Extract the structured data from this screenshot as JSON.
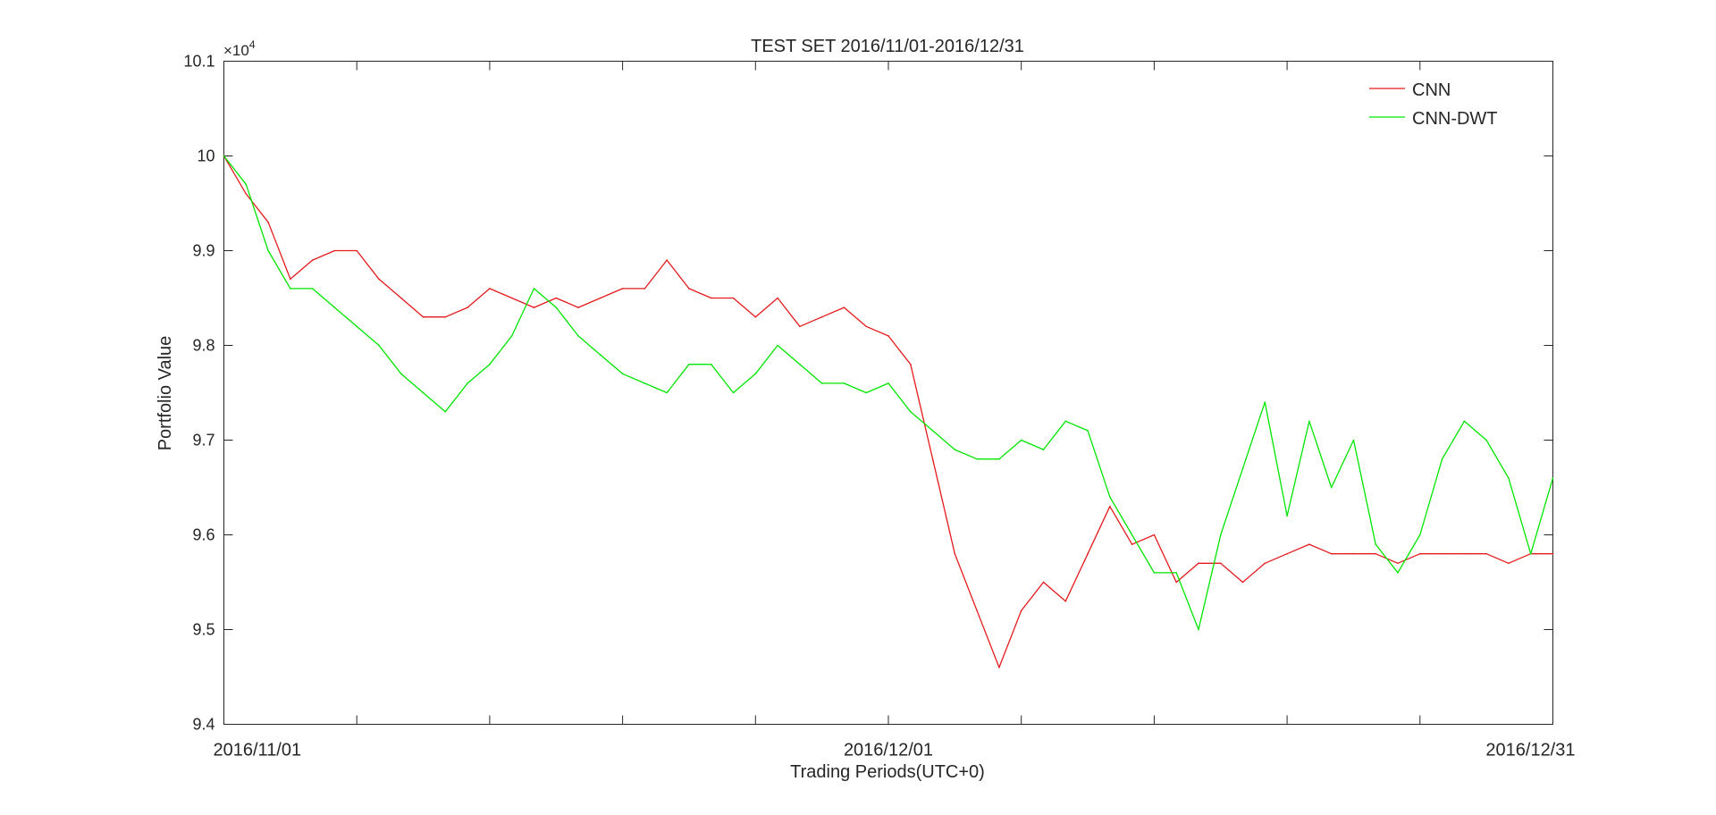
{
  "chart_data": {
    "type": "line",
    "title": "TEST SET 2016/11/01-2016/12/31",
    "xlabel": "Trading Periods(UTC+0)",
    "ylabel": "Portfolio Value",
    "y_exponent_label": "×10",
    "y_exponent_power": "4",
    "xlim": [
      "2016-11-01",
      "2016-12-31"
    ],
    "ylim": [
      9.4,
      10.1
    ],
    "y_scale_note": "values in units of 10^4",
    "yticks": [
      "9.4",
      "9.5",
      "9.6",
      "9.7",
      "9.8",
      "9.9",
      "10",
      "10.1"
    ],
    "xticks_labeled": [
      "2016/11/01",
      "2016/12/01",
      "2016/12/31"
    ],
    "legend_position": "top-right",
    "grid": false,
    "series": [
      {
        "name": "CNN",
        "color": "#e41a1c",
        "points": [
          [
            "2016-11-01",
            10.0
          ],
          [
            "2016-11-02",
            9.96
          ],
          [
            "2016-11-03",
            9.93
          ],
          [
            "2016-11-04",
            9.87
          ],
          [
            "2016-11-05",
            9.89
          ],
          [
            "2016-11-06",
            9.9
          ],
          [
            "2016-11-07",
            9.9
          ],
          [
            "2016-11-08",
            9.87
          ],
          [
            "2016-11-09",
            9.85
          ],
          [
            "2016-11-10",
            9.83
          ],
          [
            "2016-11-11",
            9.83
          ],
          [
            "2016-11-12",
            9.84
          ],
          [
            "2016-11-13",
            9.86
          ],
          [
            "2016-11-14",
            9.85
          ],
          [
            "2016-11-15",
            9.84
          ],
          [
            "2016-11-16",
            9.85
          ],
          [
            "2016-11-17",
            9.84
          ],
          [
            "2016-11-18",
            9.85
          ],
          [
            "2016-11-19",
            9.86
          ],
          [
            "2016-11-20",
            9.86
          ],
          [
            "2016-11-21",
            9.89
          ],
          [
            "2016-11-22",
            9.86
          ],
          [
            "2016-11-23",
            9.85
          ],
          [
            "2016-11-24",
            9.85
          ],
          [
            "2016-11-25",
            9.83
          ],
          [
            "2016-11-26",
            9.85
          ],
          [
            "2016-11-27",
            9.82
          ],
          [
            "2016-11-28",
            9.83
          ],
          [
            "2016-11-29",
            9.84
          ],
          [
            "2016-11-30",
            9.82
          ],
          [
            "2016-12-01",
            9.81
          ],
          [
            "2016-12-02",
            9.78
          ],
          [
            "2016-12-03",
            9.68
          ],
          [
            "2016-12-04",
            9.58
          ],
          [
            "2016-12-05",
            9.52
          ],
          [
            "2016-12-06",
            9.46
          ],
          [
            "2016-12-07",
            9.52
          ],
          [
            "2016-12-08",
            9.55
          ],
          [
            "2016-12-09",
            9.53
          ],
          [
            "2016-12-10",
            9.58
          ],
          [
            "2016-12-11",
            9.63
          ],
          [
            "2016-12-12",
            9.59
          ],
          [
            "2016-12-13",
            9.6
          ],
          [
            "2016-12-14",
            9.55
          ],
          [
            "2016-12-15",
            9.57
          ],
          [
            "2016-12-16",
            9.57
          ],
          [
            "2016-12-17",
            9.55
          ],
          [
            "2016-12-18",
            9.57
          ],
          [
            "2016-12-19",
            9.58
          ],
          [
            "2016-12-20",
            9.59
          ],
          [
            "2016-12-21",
            9.58
          ],
          [
            "2016-12-22",
            9.58
          ],
          [
            "2016-12-23",
            9.58
          ],
          [
            "2016-12-24",
            9.57
          ],
          [
            "2016-12-25",
            9.58
          ],
          [
            "2016-12-26",
            9.58
          ],
          [
            "2016-12-27",
            9.58
          ],
          [
            "2016-12-28",
            9.58
          ],
          [
            "2016-12-29",
            9.57
          ],
          [
            "2016-12-30",
            9.58
          ],
          [
            "2016-12-31",
            9.58
          ]
        ]
      },
      {
        "name": "CNN-DWT",
        "color": "#00e600",
        "points": [
          [
            "2016-11-01",
            10.0
          ],
          [
            "2016-11-02",
            9.97
          ],
          [
            "2016-11-03",
            9.9
          ],
          [
            "2016-11-04",
            9.86
          ],
          [
            "2016-11-05",
            9.86
          ],
          [
            "2016-11-06",
            9.84
          ],
          [
            "2016-11-07",
            9.82
          ],
          [
            "2016-11-08",
            9.8
          ],
          [
            "2016-11-09",
            9.77
          ],
          [
            "2016-11-10",
            9.75
          ],
          [
            "2016-11-11",
            9.73
          ],
          [
            "2016-11-12",
            9.76
          ],
          [
            "2016-11-13",
            9.78
          ],
          [
            "2016-11-14",
            9.81
          ],
          [
            "2016-11-15",
            9.86
          ],
          [
            "2016-11-16",
            9.84
          ],
          [
            "2016-11-17",
            9.81
          ],
          [
            "2016-11-18",
            9.79
          ],
          [
            "2016-11-19",
            9.77
          ],
          [
            "2016-11-20",
            9.76
          ],
          [
            "2016-11-21",
            9.75
          ],
          [
            "2016-11-22",
            9.78
          ],
          [
            "2016-11-23",
            9.78
          ],
          [
            "2016-11-24",
            9.75
          ],
          [
            "2016-11-25",
            9.77
          ],
          [
            "2016-11-26",
            9.8
          ],
          [
            "2016-11-27",
            9.78
          ],
          [
            "2016-11-28",
            9.76
          ],
          [
            "2016-11-29",
            9.76
          ],
          [
            "2016-11-30",
            9.75
          ],
          [
            "2016-12-01",
            9.76
          ],
          [
            "2016-12-02",
            9.73
          ],
          [
            "2016-12-03",
            9.71
          ],
          [
            "2016-12-04",
            9.69
          ],
          [
            "2016-12-05",
            9.68
          ],
          [
            "2016-12-06",
            9.68
          ],
          [
            "2016-12-07",
            9.7
          ],
          [
            "2016-12-08",
            9.69
          ],
          [
            "2016-12-09",
            9.72
          ],
          [
            "2016-12-10",
            9.71
          ],
          [
            "2016-12-11",
            9.64
          ],
          [
            "2016-12-12",
            9.6
          ],
          [
            "2016-12-13",
            9.56
          ],
          [
            "2016-12-14",
            9.56
          ],
          [
            "2016-12-15",
            9.5
          ],
          [
            "2016-12-16",
            9.6
          ],
          [
            "2016-12-17",
            9.67
          ],
          [
            "2016-12-18",
            9.74
          ],
          [
            "2016-12-19",
            9.62
          ],
          [
            "2016-12-20",
            9.72
          ],
          [
            "2016-12-21",
            9.65
          ],
          [
            "2016-12-22",
            9.7
          ],
          [
            "2016-12-23",
            9.59
          ],
          [
            "2016-12-24",
            9.56
          ],
          [
            "2016-12-25",
            9.6
          ],
          [
            "2016-12-26",
            9.68
          ],
          [
            "2016-12-27",
            9.72
          ],
          [
            "2016-12-28",
            9.7
          ],
          [
            "2016-12-29",
            9.66
          ],
          [
            "2016-12-30",
            9.58
          ],
          [
            "2016-12-31",
            9.66
          ]
        ]
      }
    ]
  }
}
